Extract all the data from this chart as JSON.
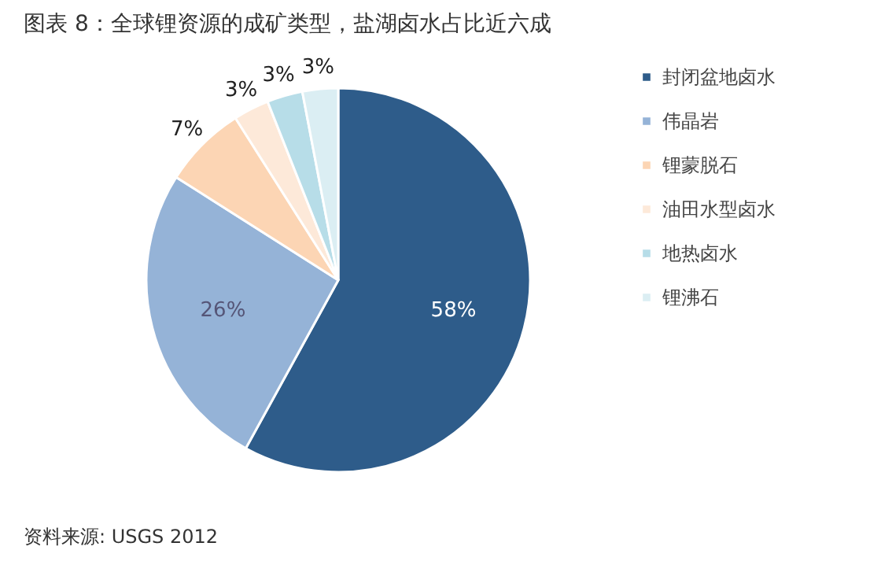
{
  "chart_data": {
    "type": "pie",
    "title": "图表 8：全球锂资源的成矿类型，盐湖卤水占比近六成",
    "categories": [
      "封闭盆地卤水",
      "伟晶岩",
      "锂蒙脱石",
      "油田水型卤水",
      "地热卤水",
      "锂沸石"
    ],
    "values": [
      58,
      26,
      7,
      3,
      3,
      3
    ],
    "colors": [
      "#2e5c8a",
      "#95b3d7",
      "#fcd5b4",
      "#fde9d9",
      "#b7dde8",
      "#dbeef3"
    ],
    "value_labels": [
      "58%",
      "26%",
      "7%",
      "3%",
      "3%",
      "3%"
    ],
    "legend": "right",
    "annotations": [
      "资料来源: USGS 2012"
    ]
  }
}
